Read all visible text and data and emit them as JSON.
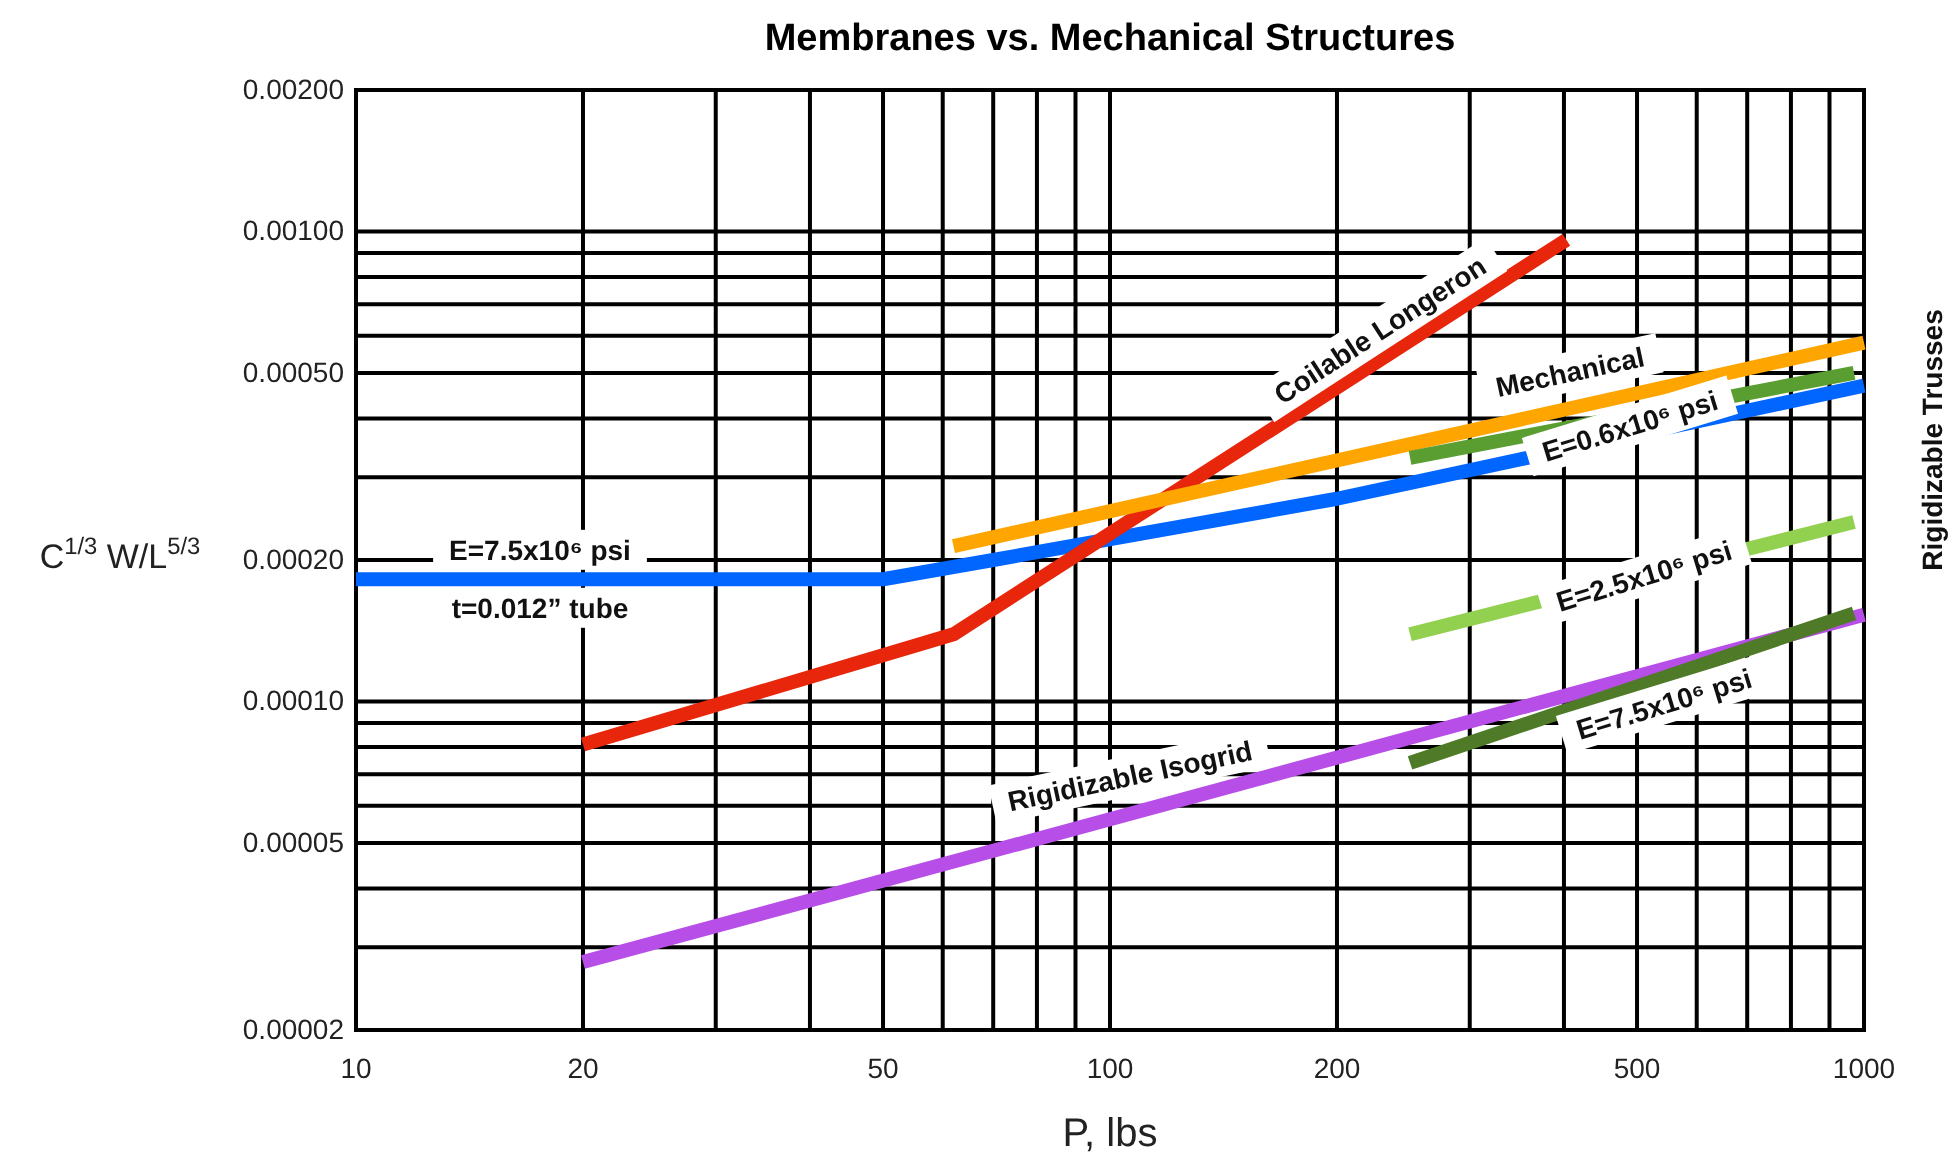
{
  "chart_data": {
    "type": "line",
    "title": "Membranes vs. Mechanical Structures",
    "xlabel": "P, lbs",
    "ylabel": "C$^{1/3}$ W/L$^{5/3}$",
    "log": "xy",
    "grid": true,
    "xlim": [
      10,
      1000
    ],
    "ylim": [
      2e-05,
      0.002
    ],
    "xticks": [
      10,
      20,
      {
        "value": 30,
        "label": null
      },
      {
        "value": 40,
        "label": null
      },
      50,
      {
        "value": 60,
        "label": null
      },
      {
        "value": 70,
        "label": null
      },
      {
        "value": 80,
        "label": null
      },
      {
        "value": 90,
        "label": null
      },
      100,
      200,
      {
        "value": 300,
        "label": null
      },
      {
        "value": 400,
        "label": null
      },
      500,
      {
        "value": 600,
        "label": null
      },
      {
        "value": 700,
        "label": null
      },
      {
        "value": 800,
        "label": null
      },
      {
        "value": 900,
        "label": null
      },
      1000
    ],
    "yticks": [
      {
        "value": 2e-05,
        "label": "0.00002"
      },
      {
        "value": 3e-05,
        "label": null
      },
      {
        "value": 4e-05,
        "label": null
      },
      {
        "value": 5e-05,
        "label": "0.00005"
      },
      {
        "value": 6e-05,
        "label": null
      },
      {
        "value": 7e-05,
        "label": null
      },
      {
        "value": 8e-05,
        "label": null
      },
      {
        "value": 9e-05,
        "label": null
      },
      {
        "value": 0.0001,
        "label": "0.00010"
      },
      {
        "value": 0.0002,
        "label": "0.00020"
      },
      {
        "value": 0.0003,
        "label": null
      },
      {
        "value": 0.0004,
        "label": null
      },
      {
        "value": 0.0005,
        "label": "0.00050"
      },
      {
        "value": 0.0006,
        "label": null
      },
      {
        "value": 0.0007,
        "label": null
      },
      {
        "value": 0.0008,
        "label": null
      },
      {
        "value": 0.0009,
        "label": null
      },
      {
        "value": 0.001,
        "label": "0.00100"
      },
      {
        "value": 0.002,
        "label": "0.00200"
      }
    ],
    "series": [
      {
        "color": "#0066ff",
        "x": [
          10,
          50,
          70,
          200,
          1000
        ],
        "values": [
          0.000182,
          0.000182,
          0.0002,
          0.00027,
          0.00047
        ]
      },
      {
        "color": "#e8260c",
        "x": [
          20,
          62,
          403
        ],
        "values": [
          8.1e-05,
          0.000139,
          0.00096
        ]
      },
      {
        "color": "#ffa500",
        "x": [
          62,
          1000
        ],
        "values": [
          0.000214,
          0.00058
        ]
      },
      {
        "color": "#5a9e32",
        "x": [
          250,
          970
        ],
        "values": [
          0.00033,
          0.0005
        ]
      },
      {
        "color": "#92d050",
        "x": [
          250,
          970
        ],
        "values": [
          0.000139,
          0.000241
        ]
      },
      {
        "color": "#b84ee8",
        "x": [
          20,
          1000
        ],
        "values": [
          2.79e-05,
          0.000153
        ]
      },
      {
        "color": "#4f7a28",
        "x": [
          250,
          970
        ],
        "values": [
          7.4e-05,
          0.000154
        ]
      }
    ],
    "annotations": [
      "E=7.5x10⁶ psi",
      "t=0.012” tube",
      "Coilable Longeron",
      "Mechanical",
      "E=0.6x10⁶ psi",
      "E=2.5x10⁶ psi",
      "E=7.5x10⁶ psi",
      "Rigidizable Isogrid",
      "Rigidizable Trusses"
    ]
  }
}
